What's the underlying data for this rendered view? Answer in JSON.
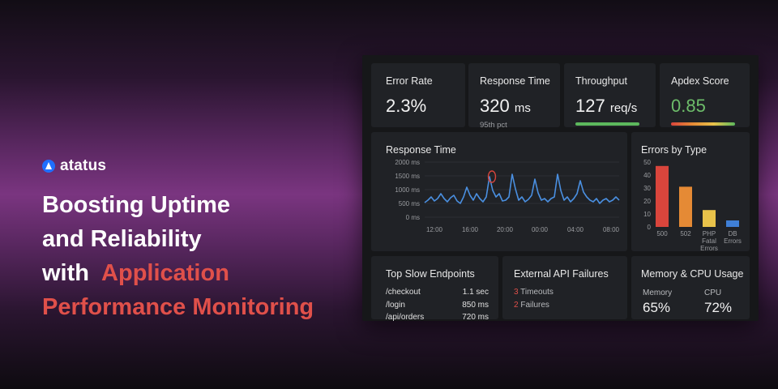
{
  "brand": {
    "name": "atatus"
  },
  "headline": {
    "line1": "Boosting Uptime",
    "line2": "and Reliability",
    "line3_prefix": "with ",
    "line3_accent": "Application",
    "line4_accent": "Performance Monitoring"
  },
  "kpis": {
    "error_rate": {
      "title": "Error Rate",
      "value": "2.3%"
    },
    "response_time": {
      "title": "Response Time",
      "value": "320",
      "unit": "ms",
      "sub": "95th pct"
    },
    "throughput": {
      "title": "Throughput",
      "value": "127",
      "unit": "req/s",
      "bar_color": "#5cb85c"
    },
    "apdex": {
      "title": "Apdex Score",
      "value": "0.85",
      "value_color": "#6dbd6a"
    }
  },
  "response_chart": {
    "title": "Response Time",
    "y_ticks": [
      "2000 ms",
      "1500 ms",
      "1000 ms",
      "500 ms",
      "0 ms"
    ],
    "x_ticks": [
      "12:00",
      "16:00",
      "20:00",
      "00:00",
      "04:00",
      "08:00"
    ]
  },
  "chart_data": {
    "type": "bar",
    "title": "Errors by Type",
    "categories": [
      "500",
      "502",
      "PHP Fatal Errors",
      "DB Errors"
    ],
    "values": [
      47,
      31,
      13,
      5
    ],
    "ylim": [
      0,
      50
    ],
    "y_ticks": [
      "50",
      "40",
      "30",
      "20",
      "10",
      "0"
    ],
    "colors": [
      "#d9453c",
      "#e58a35",
      "#e8c24a",
      "#3f7fd6"
    ]
  },
  "slow_endpoints": {
    "title": "Top Slow Endpoints",
    "rows": [
      {
        "path": "/checkout",
        "time": "1.1 sec"
      },
      {
        "path": "/login",
        "time": "850 ms"
      },
      {
        "path": "/api/orders",
        "time": "720 ms"
      }
    ]
  },
  "api_failures": {
    "title": "External API Failures",
    "rows": [
      {
        "count": "3",
        "label": "Timeouts"
      },
      {
        "count": "2",
        "label": "Failures"
      }
    ]
  },
  "resources": {
    "title": "Memory & CPU Usage",
    "memory_label": "Memory",
    "memory_value": "65%",
    "cpu_label": "CPU",
    "cpu_value": "72%"
  }
}
